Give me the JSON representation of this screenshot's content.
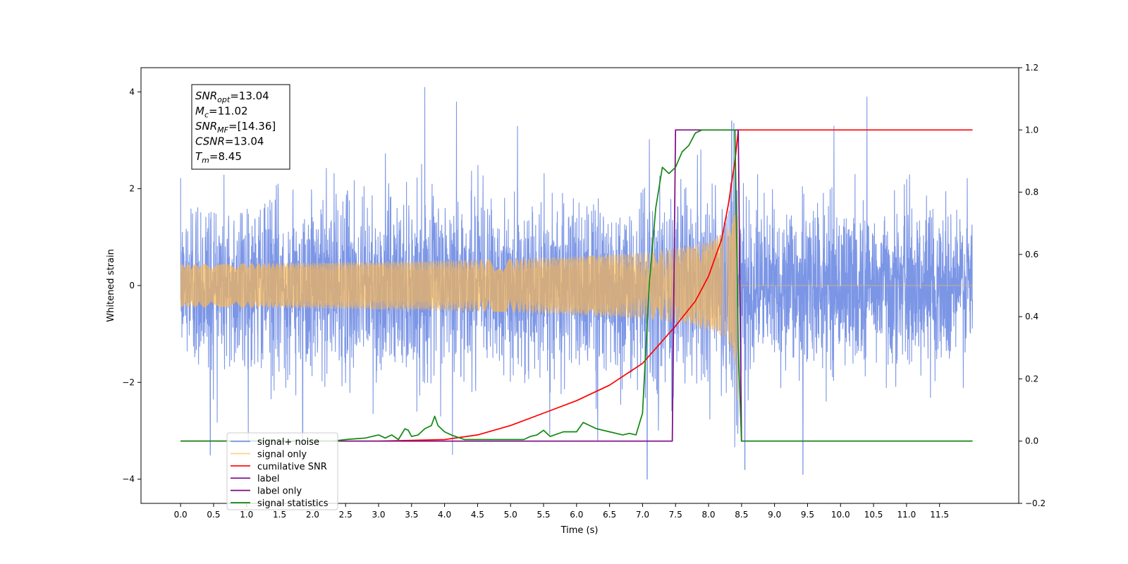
{
  "chart_data": {
    "type": "line",
    "title": "",
    "xlabel": "Time (s)",
    "ylabel": "Whitened strain",
    "y2label": "",
    "xlim": [
      -0.6,
      12.7
    ],
    "ylim": [
      -4.5,
      4.5
    ],
    "y2lim": [
      -0.2,
      1.2
    ],
    "xticks": [
      "0.0",
      "0.5",
      "1.0",
      "1.5",
      "2.0",
      "2.5",
      "3.0",
      "3.5",
      "4.0",
      "4.5",
      "5.0",
      "5.5",
      "6.0",
      "6.5",
      "7.0",
      "7.5",
      "8.0",
      "8.5",
      "9.0",
      "9.5",
      "10.0",
      "10.5",
      "11.0",
      "11.5"
    ],
    "yticks": [
      "-4",
      "-2",
      "0",
      "2",
      "4"
    ],
    "y2ticks": [
      "-0.2",
      "0.0",
      "0.2",
      "0.4",
      "0.6",
      "0.8",
      "1.0",
      "1.2"
    ],
    "grid": false,
    "legend_position": "lower-left",
    "annotation": {
      "lines": [
        {
          "sym": "SNR",
          "sub": "opt",
          "value": "=13.04"
        },
        {
          "sym": "M",
          "sub": "c",
          "value": "=11.02"
        },
        {
          "sym": "SNR",
          "sub": "MF",
          "value": "=[14.36]"
        },
        {
          "sym": "CSNR",
          "sub": "",
          "value": "=13.04"
        },
        {
          "sym": "T",
          "sub": "m",
          "value": "=8.45"
        }
      ]
    },
    "series": [
      {
        "name": "signal+ noise",
        "axis": "left",
        "color": "#7590e5",
        "kind": "noise",
        "x_range": [
          0.0,
          12.0
        ],
        "noise_std": 0.8,
        "notable_peaks": [
          {
            "x": 3.7,
            "y": 4.1
          },
          {
            "x": 4.18,
            "y": 3.8
          },
          {
            "x": 10.4,
            "y": 3.9
          },
          {
            "x": 8.35,
            "y": 3.4
          },
          {
            "x": 9.9,
            "y": 3.3
          },
          {
            "x": 0.45,
            "y": -3.5
          },
          {
            "x": 4.12,
            "y": -3.5
          },
          {
            "x": 7.07,
            "y": -4.0
          },
          {
            "x": 9.43,
            "y": -3.9
          },
          {
            "x": 8.55,
            "y": -3.8
          },
          {
            "x": 1.85,
            "y": -3.3
          },
          {
            "x": 6.32,
            "y": -3.2
          }
        ]
      },
      {
        "name": "signal only",
        "axis": "left",
        "color": "#ffb84d",
        "kind": "chirp",
        "x_range": [
          0.0,
          12.0
        ],
        "merger_time": 8.45,
        "peak_amplitude": 3.0
      },
      {
        "name": "cumilative SNR",
        "axis": "right",
        "color": "#ff0000",
        "x": [
          0.0,
          3.0,
          4.0,
          4.5,
          5.0,
          5.5,
          6.0,
          6.5,
          7.0,
          7.5,
          7.8,
          8.0,
          8.2,
          8.3,
          8.4,
          8.45,
          9.0,
          10.0,
          11.0,
          12.0
        ],
        "values": [
          0.0,
          0.0,
          0.005,
          0.02,
          0.05,
          0.09,
          0.13,
          0.18,
          0.25,
          0.37,
          0.45,
          0.53,
          0.65,
          0.76,
          0.9,
          1.0,
          1.0,
          1.0,
          1.0,
          1.0
        ]
      },
      {
        "name": "label",
        "axis": "right",
        "color": "#7b0a82",
        "x": [
          0.0,
          7.45,
          7.5,
          8.45,
          8.5,
          12.0
        ],
        "values": [
          0.0,
          0.0,
          1.0,
          1.0,
          0.0,
          0.0
        ]
      },
      {
        "name": "label only",
        "axis": "right",
        "color": "#7b0a82",
        "hidden_in_legend_overlap": true,
        "x": [],
        "values": []
      },
      {
        "name": "signal statistics",
        "axis": "right",
        "color": "#118811",
        "x": [
          0.0,
          2.3,
          2.5,
          2.8,
          3.0,
          3.1,
          3.2,
          3.3,
          3.4,
          3.45,
          3.5,
          3.6,
          3.7,
          3.8,
          3.85,
          3.9,
          4.0,
          4.1,
          4.3,
          4.5,
          4.8,
          5.0,
          5.2,
          5.3,
          5.4,
          5.5,
          5.6,
          5.8,
          6.0,
          6.1,
          6.2,
          6.3,
          6.5,
          6.6,
          6.7,
          6.8,
          6.9,
          7.0,
          7.1,
          7.2,
          7.3,
          7.4,
          7.5,
          7.6,
          7.7,
          7.8,
          7.9,
          8.0,
          8.3,
          8.4,
          8.45,
          8.5,
          12.0
        ],
        "values": [
          0.0,
          0.0,
          0.005,
          0.01,
          0.02,
          0.01,
          0.02,
          0.005,
          0.04,
          0.035,
          0.015,
          0.02,
          0.04,
          0.05,
          0.08,
          0.05,
          0.03,
          0.02,
          0.005,
          0.005,
          0.005,
          0.005,
          0.005,
          0.015,
          0.02,
          0.035,
          0.015,
          0.03,
          0.03,
          0.06,
          0.05,
          0.04,
          0.03,
          0.025,
          0.02,
          0.025,
          0.02,
          0.09,
          0.5,
          0.75,
          0.88,
          0.86,
          0.88,
          0.93,
          0.95,
          0.99,
          1.0,
          1.0,
          1.0,
          1.0,
          0.3,
          0.0,
          0.0
        ]
      }
    ]
  }
}
